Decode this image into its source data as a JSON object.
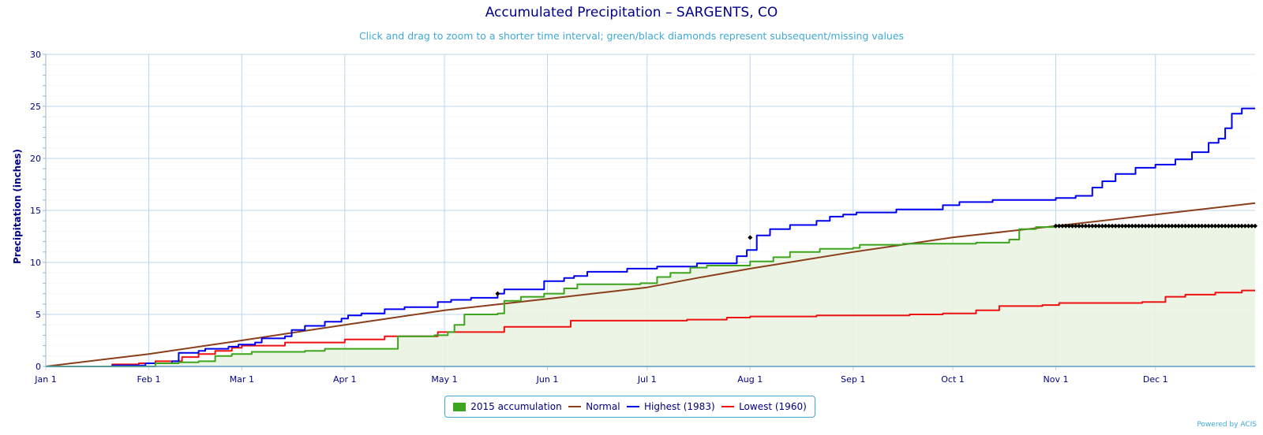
{
  "colors": {
    "accumulation": "#3da51d",
    "normal": "#8b3e1a",
    "highest": "#0000ee",
    "lowest": "#ee1111",
    "missing": "#000000",
    "grid": "#bcd7ea",
    "axis_text": "#00008b",
    "fill": "#eaf3e2"
  },
  "legend": {
    "accumulation": "2015 accumulation",
    "normal": "Normal",
    "highest": "Highest (1983)",
    "lowest": "Lowest (1960)"
  },
  "credit": "Powered by ACIS",
  "chart_data": {
    "type": "line",
    "title": "Accumulated Precipitation – SARGENTS, CO",
    "subtitle": "Click and drag to zoom to a shorter time interval; green/black diamonds represent subsequent/missing values",
    "ylabel": "Precipitation (inches)",
    "xlabel": "",
    "ylim": [
      0,
      30
    ],
    "yticks": [
      0,
      5,
      10,
      15,
      20,
      25,
      30
    ],
    "x_domain_days": [
      0,
      364
    ],
    "xticks": [
      {
        "label": "Jan 1",
        "day": 0
      },
      {
        "label": "Feb 1",
        "day": 31
      },
      {
        "label": "Mar 1",
        "day": 59
      },
      {
        "label": "Apr 1",
        "day": 90
      },
      {
        "label": "May 1",
        "day": 120
      },
      {
        "label": "Jun 1",
        "day": 151
      },
      {
        "label": "Jul 1",
        "day": 181
      },
      {
        "label": "Aug 1",
        "day": 212
      },
      {
        "label": "Sep 1",
        "day": 243
      },
      {
        "label": "Oct 1",
        "day": 273
      },
      {
        "label": "Nov 1",
        "day": 304
      },
      {
        "label": "Dec 1",
        "day": 334
      }
    ],
    "grid": true,
    "legend_position": "bottom-center",
    "series": [
      {
        "name": "2015 accumulation",
        "key": "accumulation",
        "style": "step-area",
        "points": [
          [
            0,
            0
          ],
          [
            25,
            0
          ],
          [
            33,
            0.3
          ],
          [
            40,
            0.4
          ],
          [
            46,
            0.5
          ],
          [
            51,
            1.0
          ],
          [
            56,
            1.2
          ],
          [
            62,
            1.4
          ],
          [
            78,
            1.5
          ],
          [
            84,
            1.7
          ],
          [
            104,
            1.7
          ],
          [
            106,
            2.9
          ],
          [
            117,
            3.0
          ],
          [
            121,
            3.3
          ],
          [
            123,
            4.0
          ],
          [
            126,
            5.0
          ],
          [
            136,
            5.1
          ],
          [
            138,
            6.3
          ],
          [
            143,
            6.7
          ],
          [
            150,
            7.0
          ],
          [
            156,
            7.5
          ],
          [
            160,
            7.9
          ],
          [
            179,
            8.0
          ],
          [
            184,
            8.6
          ],
          [
            188,
            9.0
          ],
          [
            194,
            9.5
          ],
          [
            199,
            9.7
          ],
          [
            212,
            10.1
          ],
          [
            219,
            10.5
          ],
          [
            224,
            11.0
          ],
          [
            233,
            11.3
          ],
          [
            243,
            11.4
          ],
          [
            245,
            11.7
          ],
          [
            258,
            11.8
          ],
          [
            280,
            11.9
          ],
          [
            290,
            12.2
          ],
          [
            293,
            13.2
          ],
          [
            298,
            13.4
          ],
          [
            304,
            13.5
          ]
        ]
      },
      {
        "name": "Normal",
        "key": "normal",
        "style": "line",
        "points": [
          [
            0,
            0
          ],
          [
            31,
            1.2
          ],
          [
            59,
            2.5
          ],
          [
            90,
            4.0
          ],
          [
            120,
            5.4
          ],
          [
            151,
            6.5
          ],
          [
            181,
            7.6
          ],
          [
            196,
            8.5
          ],
          [
            212,
            9.4
          ],
          [
            243,
            11.0
          ],
          [
            273,
            12.4
          ],
          [
            304,
            13.5
          ],
          [
            334,
            14.6
          ],
          [
            364,
            15.7
          ]
        ]
      },
      {
        "name": "Highest (1983)",
        "key": "highest",
        "style": "step",
        "points": [
          [
            0,
            0
          ],
          [
            20,
            0.1
          ],
          [
            30,
            0.3
          ],
          [
            38,
            0.5
          ],
          [
            40,
            1.3
          ],
          [
            46,
            1.5
          ],
          [
            48,
            1.7
          ],
          [
            55,
            1.9
          ],
          [
            58,
            2.1
          ],
          [
            63,
            2.3
          ],
          [
            65,
            2.7
          ],
          [
            72,
            2.9
          ],
          [
            74,
            3.5
          ],
          [
            78,
            3.9
          ],
          [
            84,
            4.3
          ],
          [
            89,
            4.6
          ],
          [
            91,
            4.9
          ],
          [
            95,
            5.1
          ],
          [
            102,
            5.5
          ],
          [
            108,
            5.7
          ],
          [
            118,
            6.2
          ],
          [
            122,
            6.4
          ],
          [
            128,
            6.6
          ],
          [
            136,
            7.0
          ],
          [
            138,
            7.4
          ],
          [
            150,
            8.2
          ],
          [
            156,
            8.5
          ],
          [
            159,
            8.7
          ],
          [
            163,
            9.1
          ],
          [
            175,
            9.4
          ],
          [
            184,
            9.6
          ],
          [
            196,
            9.9
          ],
          [
            208,
            10.6
          ],
          [
            211,
            11.2
          ],
          [
            214,
            12.6
          ],
          [
            218,
            13.2
          ],
          [
            224,
            13.6
          ],
          [
            232,
            14.0
          ],
          [
            236,
            14.4
          ],
          [
            240,
            14.6
          ],
          [
            244,
            14.8
          ],
          [
            256,
            15.1
          ],
          [
            270,
            15.5
          ],
          [
            275,
            15.8
          ],
          [
            285,
            16.0
          ],
          [
            304,
            16.2
          ],
          [
            310,
            16.4
          ],
          [
            315,
            17.2
          ],
          [
            318,
            17.8
          ],
          [
            322,
            18.5
          ],
          [
            328,
            19.1
          ],
          [
            334,
            19.4
          ],
          [
            340,
            19.9
          ],
          [
            345,
            20.6
          ],
          [
            350,
            21.5
          ],
          [
            353,
            21.9
          ],
          [
            355,
            22.9
          ],
          [
            357,
            24.3
          ],
          [
            360,
            24.8
          ],
          [
            364,
            24.8
          ]
        ]
      },
      {
        "name": "Lowest (1960)",
        "key": "lowest",
        "style": "step",
        "points": [
          [
            0,
            0
          ],
          [
            20,
            0.2
          ],
          [
            28,
            0.3
          ],
          [
            33,
            0.5
          ],
          [
            41,
            0.9
          ],
          [
            46,
            1.2
          ],
          [
            51,
            1.5
          ],
          [
            56,
            1.8
          ],
          [
            59,
            2.0
          ],
          [
            72,
            2.3
          ],
          [
            90,
            2.6
          ],
          [
            102,
            2.9
          ],
          [
            118,
            3.3
          ],
          [
            138,
            3.8
          ],
          [
            158,
            4.4
          ],
          [
            193,
            4.5
          ],
          [
            205,
            4.7
          ],
          [
            212,
            4.8
          ],
          [
            232,
            4.9
          ],
          [
            260,
            5.0
          ],
          [
            270,
            5.1
          ],
          [
            280,
            5.4
          ],
          [
            287,
            5.8
          ],
          [
            300,
            5.9
          ],
          [
            305,
            6.1
          ],
          [
            330,
            6.2
          ],
          [
            337,
            6.7
          ],
          [
            343,
            6.9
          ],
          [
            352,
            7.1
          ],
          [
            360,
            7.3
          ],
          [
            364,
            7.3
          ]
        ]
      }
    ],
    "markers": {
      "missing_diamonds": {
        "start_day": 304,
        "end_day": 364,
        "value": 13.5,
        "count": 61
      },
      "subsequent_points": [
        [
          136,
          7.0
        ],
        [
          212,
          12.4
        ]
      ]
    }
  }
}
